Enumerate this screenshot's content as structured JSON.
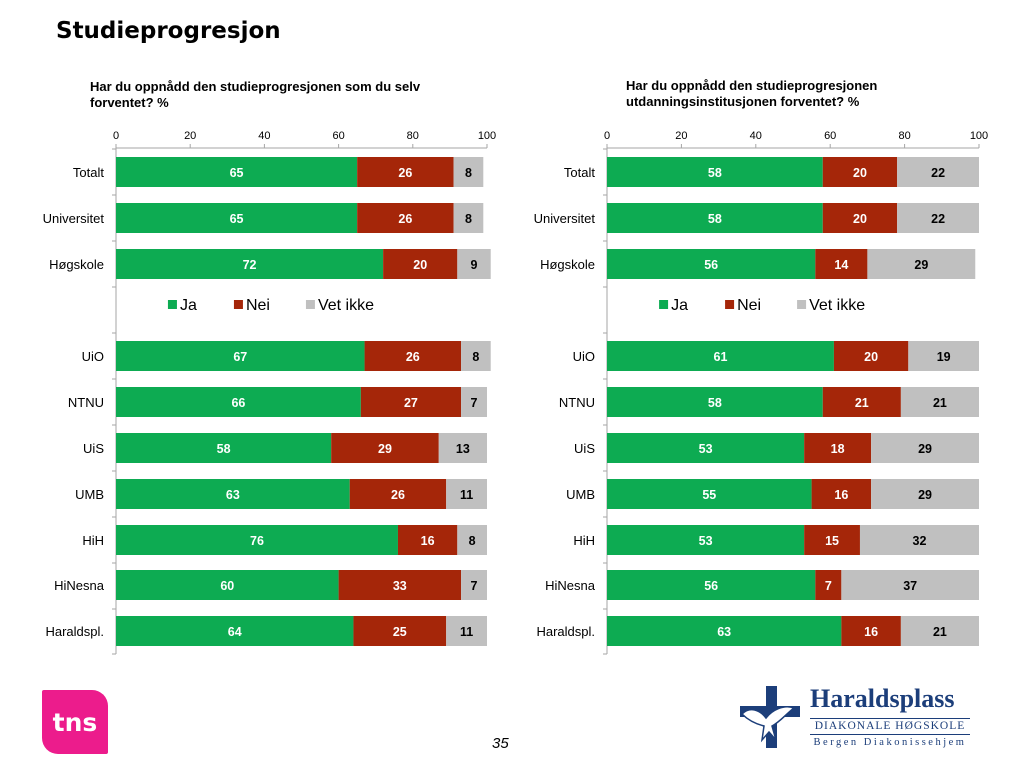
{
  "page": {
    "title": "Studieprogresjon",
    "page_number": "35",
    "logos": {
      "tns": "tns",
      "haraldsplass_name": "Haraldsplass",
      "haraldsplass_sub": "DIAKONALE HØGSKOLE",
      "haraldsplass_sub2": "Bergen Diakonissehjem"
    }
  },
  "colors": {
    "ja": "#0dab52",
    "nei": "#a52609",
    "vet_ikke": "#c0c0c0"
  },
  "chart_data": [
    {
      "type": "bar",
      "stacked": true,
      "orientation": "horizontal",
      "title": "Har du oppnådd den studieprogresjonen som du selv forventet? %",
      "xlim": [
        0,
        100
      ],
      "xticks": [
        0,
        20,
        40,
        60,
        80,
        100
      ],
      "categories": [
        "Totalt",
        "Universitet",
        "Høgskole",
        "UiO",
        "NTNU",
        "UiS",
        "UMB",
        "HiH",
        "HiNesna",
        "Haraldspl."
      ],
      "series": [
        {
          "name": "Ja",
          "values": [
            65,
            65,
            72,
            67,
            66,
            58,
            63,
            76,
            60,
            64
          ]
        },
        {
          "name": "Nei",
          "values": [
            26,
            26,
            20,
            26,
            27,
            29,
            26,
            16,
            33,
            25
          ]
        },
        {
          "name": "Vet ikke",
          "values": [
            8,
            8,
            9,
            8,
            7,
            13,
            11,
            8,
            7,
            11
          ]
        }
      ],
      "legend": "between Høgskole and UiO"
    },
    {
      "type": "bar",
      "stacked": true,
      "orientation": "horizontal",
      "title": "Har du oppnådd den studieprogresjonen utdanningsinstitusjonen forventet? %",
      "xlim": [
        0,
        100
      ],
      "xticks": [
        0,
        20,
        40,
        60,
        80,
        100
      ],
      "categories": [
        "Totalt",
        "Universitet",
        "Høgskole",
        "UiO",
        "NTNU",
        "UiS",
        "UMB",
        "HiH",
        "HiNesna",
        "Haraldspl."
      ],
      "series": [
        {
          "name": "Ja",
          "values": [
            58,
            58,
            56,
            61,
            58,
            53,
            55,
            53,
            56,
            63
          ]
        },
        {
          "name": "Nei",
          "values": [
            20,
            20,
            14,
            20,
            21,
            18,
            16,
            15,
            7,
            16
          ]
        },
        {
          "name": "Vet ikke",
          "values": [
            22,
            22,
            29,
            19,
            21,
            29,
            29,
            32,
            37,
            21
          ]
        }
      ],
      "legend": "between Høgskole and UiO"
    }
  ]
}
